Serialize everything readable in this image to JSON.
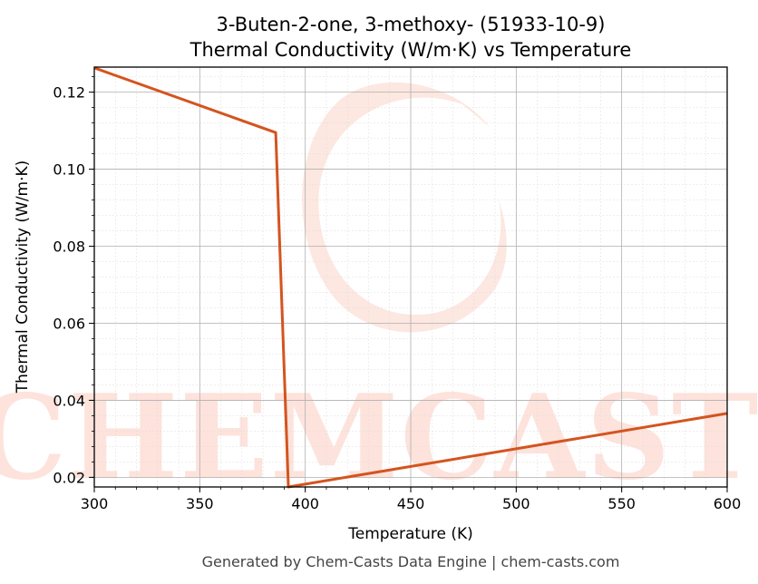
{
  "chart_data": {
    "type": "line",
    "title": "3-Buten-2-one, 3-methoxy- (51933-10-9)",
    "subtitle": "Thermal Conductivity (W/m·K) vs Temperature",
    "xlabel": "Temperature (K)",
    "ylabel": "Thermal Conductivity (W/m·K)",
    "xlim": [
      300,
      600
    ],
    "ylim": [
      0.0175,
      0.1265
    ],
    "xticks": [
      300,
      350,
      400,
      450,
      500,
      550,
      600
    ],
    "yticks": [
      0.02,
      0.04,
      0.06,
      0.08,
      0.1,
      0.12
    ],
    "xtick_labels": [
      "300",
      "350",
      "400",
      "450",
      "500",
      "550",
      "600"
    ],
    "ytick_labels": [
      "0.02",
      "0.04",
      "0.06",
      "0.08",
      "0.10",
      "0.12"
    ],
    "grid": true,
    "series": [
      {
        "color": "#d4541f",
        "x": [
          300,
          386,
          392,
          600
        ],
        "y": [
          0.1263,
          0.1095,
          0.0175,
          0.0366
        ]
      }
    ]
  },
  "watermark": {
    "text": "CHEMCASTS",
    "color": "#fde3dc"
  },
  "footer": "Generated by Chem-Casts Data Engine | chem-casts.com"
}
